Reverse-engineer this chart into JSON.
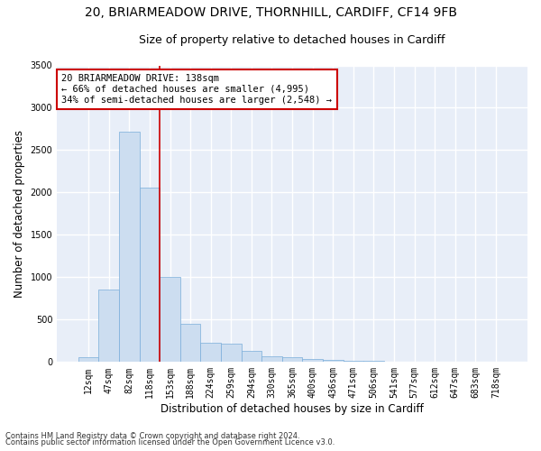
{
  "title_line1": "20, BRIARMEADOW DRIVE, THORNHILL, CARDIFF, CF14 9FB",
  "title_line2": "Size of property relative to detached houses in Cardiff",
  "xlabel": "Distribution of detached houses by size in Cardiff",
  "ylabel": "Number of detached properties",
  "bar_color": "#ccddf0",
  "bar_edge_color": "#7aadda",
  "background_color": "#e8eef8",
  "grid_color": "#ffffff",
  "categories": [
    "12sqm",
    "47sqm",
    "82sqm",
    "118sqm",
    "153sqm",
    "188sqm",
    "224sqm",
    "259sqm",
    "294sqm",
    "330sqm",
    "365sqm",
    "400sqm",
    "436sqm",
    "471sqm",
    "506sqm",
    "541sqm",
    "577sqm",
    "612sqm",
    "647sqm",
    "683sqm",
    "718sqm"
  ],
  "values": [
    60,
    850,
    2720,
    2060,
    1000,
    450,
    225,
    220,
    130,
    65,
    55,
    35,
    25,
    15,
    10,
    0,
    0,
    0,
    0,
    0,
    0
  ],
  "ylim": [
    0,
    3500
  ],
  "yticks": [
    0,
    500,
    1000,
    1500,
    2000,
    2500,
    3000,
    3500
  ],
  "vline_x_index": 3.5,
  "vline_color": "#cc0000",
  "annotation_title": "20 BRIARMEADOW DRIVE: 138sqm",
  "annotation_line2": "← 66% of detached houses are smaller (4,995)",
  "annotation_line3": "34% of semi-detached houses are larger (2,548) →",
  "annotation_box_color": "#ffffff",
  "annotation_box_edge": "#cc0000",
  "footer_line1": "Contains HM Land Registry data © Crown copyright and database right 2024.",
  "footer_line2": "Contains public sector information licensed under the Open Government Licence v3.0.",
  "title_fontsize": 10,
  "subtitle_fontsize": 9,
  "axis_label_fontsize": 8.5,
  "tick_fontsize": 7,
  "annotation_fontsize": 7.5,
  "footer_fontsize": 6
}
